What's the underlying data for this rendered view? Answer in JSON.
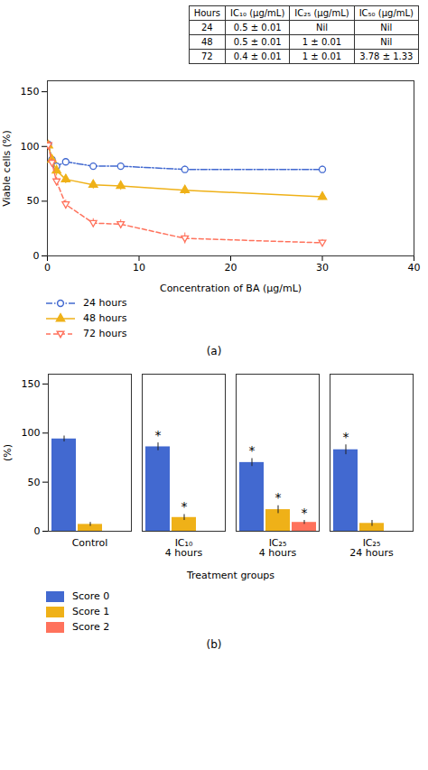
{
  "chart_data": [
    {
      "type": "table",
      "columns": [
        "Hours",
        "IC₁₀ (μg/mL)",
        "IC₂₅ (μg/mL)",
        "IC₅₀ (μg/mL)"
      ],
      "rows": [
        [
          "24",
          "0.5 ± 0.01",
          "Nil",
          "Nil"
        ],
        [
          "48",
          "0.5 ± 0.01",
          "1 ± 0.01",
          "Nil"
        ],
        [
          "72",
          "0.4 ± 0.01",
          "1 ± 0.01",
          "3.78 ± 1.33"
        ]
      ]
    },
    {
      "type": "line",
      "x": [
        0.1,
        0.5,
        1,
        2,
        5,
        8,
        15,
        30
      ],
      "xlabel": "Concentration of BA (μg/mL)",
      "ylabel": "Viable cells (%)",
      "xlim": [
        0,
        40
      ],
      "ylim": [
        0,
        160
      ],
      "xticks": [
        0,
        10,
        20,
        30,
        40
      ],
      "yticks": [
        0,
        50,
        100,
        150
      ],
      "series": [
        {
          "name": "24 hours",
          "values": [
            102,
            88,
            82,
            86,
            82,
            82,
            79,
            79
          ],
          "errors": [
            3,
            3,
            3,
            3,
            3,
            3,
            3,
            3
          ],
          "marker": "open-circle",
          "line_style": "dashdot"
        },
        {
          "name": "48 hours",
          "values": [
            101,
            88,
            78,
            70,
            65,
            64,
            60,
            54
          ],
          "errors": [
            3,
            4,
            5,
            4,
            4,
            4,
            4,
            3
          ],
          "marker": "filled-triangle-up",
          "line_style": "solid"
        },
        {
          "name": "72 hours",
          "values": [
            101,
            85,
            68,
            47,
            30,
            29,
            16,
            12
          ],
          "errors": [
            4,
            4,
            4,
            4,
            4,
            4,
            5,
            3
          ],
          "marker": "open-triangle-down",
          "line_style": "dashed"
        }
      ],
      "legend": "bottom",
      "caption": "(a)"
    },
    {
      "type": "bar",
      "categories": [
        "Control",
        "IC₁₀\n4 hours",
        "IC₂₅\n4 hours",
        "IC₂₅\n24 hours"
      ],
      "xlabel": "Treatment groups",
      "ylabel": "(%)",
      "ylim": [
        0,
        160
      ],
      "yticks": [
        0,
        50,
        100,
        150
      ],
      "series": [
        {
          "name": "Score 0",
          "values": [
            94,
            86,
            70,
            83
          ],
          "errors": [
            3,
            4,
            4,
            5
          ],
          "annotations": [
            null,
            "*",
            "*",
            "*"
          ]
        },
        {
          "name": "Score 1",
          "values": [
            7,
            14,
            22,
            8
          ],
          "errors": [
            2,
            3,
            4,
            3
          ],
          "annotations": [
            null,
            "*",
            "*",
            null
          ]
        },
        {
          "name": "Score 2",
          "values": [
            0,
            0,
            9,
            0
          ],
          "errors": [
            0,
            0,
            2,
            0
          ],
          "annotations": [
            null,
            null,
            "*",
            null
          ]
        }
      ],
      "legend": "bottom",
      "caption": "(b)"
    }
  ]
}
